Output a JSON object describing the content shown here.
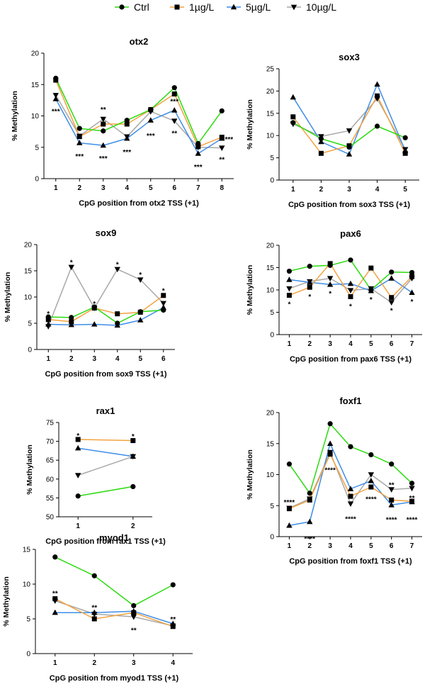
{
  "legend": {
    "entries": [
      {
        "label": "Ctrl",
        "color": "#2bdb0f",
        "marker": "circle"
      },
      {
        "label": "1µg/L",
        "color": "#f4a23f",
        "marker": "square"
      },
      {
        "label": "5µg/L",
        "color": "#3f8ee6",
        "marker": "triangle-up"
      },
      {
        "label": "10µg/L",
        "color": "#a8a8a8",
        "marker": "triangle-down"
      }
    ]
  },
  "chart_data": [
    {
      "type": "line",
      "title": "otx2",
      "xlabel": "CpG position from otx2 TSS (+1)",
      "ylabel": "% Methylation",
      "x": [
        1,
        2,
        3,
        4,
        5,
        6,
        7,
        8
      ],
      "ylim": [
        0,
        20
      ],
      "yticks": [
        0,
        5,
        10,
        15,
        20
      ],
      "series": [
        {
          "name": "Ctrl",
          "values": [
            16.0,
            8.0,
            7.6,
            9.3,
            11.0,
            14.5,
            5.6,
            10.8
          ]
        },
        {
          "name": "1µg/L",
          "values": [
            15.7,
            6.7,
            8.7,
            8.7,
            11.0,
            13.5,
            5.1,
            6.6
          ]
        },
        {
          "name": "5µg/L",
          "values": [
            12.7,
            5.7,
            5.3,
            6.4,
            9.3,
            10.9,
            4.0,
            6.4
          ]
        },
        {
          "name": "10µg/L",
          "values": [
            13.3,
            6.8,
            9.5,
            6.7,
            10.7,
            9.2,
            5.0,
            4.9
          ]
        }
      ],
      "annotations": [
        {
          "x": 1,
          "y": 10.8,
          "text": "***"
        },
        {
          "x": 2,
          "y": 3.6,
          "text": "***"
        },
        {
          "x": 3,
          "y": 11.1,
          "text": "**"
        },
        {
          "x": 3,
          "y": 3.3,
          "text": "***"
        },
        {
          "x": 4,
          "y": 4.3,
          "text": "***"
        },
        {
          "x": 5,
          "y": 6.9,
          "text": "***"
        },
        {
          "x": 6,
          "y": 12.4,
          "text": "***"
        },
        {
          "x": 6,
          "y": 7.3,
          "text": "**"
        },
        {
          "x": 7,
          "y": 1.9,
          "text": "***"
        },
        {
          "x": 8,
          "y": 3.1,
          "text": "**"
        },
        {
          "x": 8.3,
          "y": 6.3,
          "text": "***"
        }
      ]
    },
    {
      "type": "line",
      "title": "sox3",
      "xlabel": "CpG position from sox3 TSS (+1)",
      "ylabel": "% Methylation",
      "x": [
        1,
        2,
        3,
        4,
        5
      ],
      "ylim": [
        0,
        25
      ],
      "yticks": [
        0,
        5,
        10,
        15,
        20,
        25
      ],
      "series": [
        {
          "name": "Ctrl",
          "values": [
            12.9,
            9.3,
            7.4,
            12.1,
            9.5
          ]
        },
        {
          "name": "1µg/L",
          "values": [
            14.2,
            6.0,
            7.7,
            18.9,
            6.0
          ]
        },
        {
          "name": "5µg/L",
          "values": [
            18.6,
            8.6,
            5.8,
            21.5,
            6.6
          ]
        },
        {
          "name": "10µg/L",
          "values": [
            12.6,
            9.8,
            11.1,
            18.3,
            6.9
          ]
        }
      ],
      "annotations": []
    },
    {
      "type": "line",
      "title": "sox9",
      "xlabel": "CpG position from sox9 TSS (+1)",
      "ylabel": "% Methylation",
      "x": [
        1,
        2,
        3,
        4,
        5,
        6
      ],
      "ylim": [
        0,
        20
      ],
      "yticks": [
        0,
        5,
        10,
        15,
        20
      ],
      "series": [
        {
          "name": "Ctrl",
          "values": [
            6.2,
            6.1,
            8.1,
            5.0,
            7.2,
            7.5
          ]
        },
        {
          "name": "1µg/L",
          "values": [
            5.7,
            5.3,
            7.9,
            6.8,
            7.1,
            10.3
          ]
        },
        {
          "name": "5µg/L",
          "values": [
            4.8,
            4.7,
            4.8,
            4.6,
            5.6,
            8.0
          ]
        },
        {
          "name": "10µg/L",
          "values": [
            4.4,
            15.7,
            7.9,
            15.3,
            13.3,
            8.8
          ]
        }
      ],
      "annotations": [
        {
          "x": 1,
          "y": 6.9,
          "text": "*"
        },
        {
          "x": 2,
          "y": 16.7,
          "text": "*"
        },
        {
          "x": 3,
          "y": 8.8,
          "text": "*"
        },
        {
          "x": 4,
          "y": 16.3,
          "text": "*"
        },
        {
          "x": 5,
          "y": 14.3,
          "text": "*"
        },
        {
          "x": 6,
          "y": 11.3,
          "text": "*"
        }
      ]
    },
    {
      "type": "line",
      "title": "pax6",
      "xlabel": "CpG position from pax6 TSS (+1)",
      "ylabel": "% Methylation",
      "x": [
        1,
        2,
        3,
        4,
        5,
        6,
        7
      ],
      "ylim": [
        0,
        20
      ],
      "yticks": [
        0,
        5,
        10,
        15,
        20
      ],
      "series": [
        {
          "name": "Ctrl",
          "values": [
            14.2,
            15.3,
            15.5,
            16.7,
            10.0,
            14.0,
            13.9
          ]
        },
        {
          "name": "1µg/L",
          "values": [
            8.8,
            10.6,
            15.9,
            8.5,
            14.9,
            8.3,
            13.0
          ]
        },
        {
          "name": "5µg/L",
          "values": [
            12.3,
            11.7,
            11.2,
            11.4,
            9.8,
            12.6,
            9.4
          ]
        },
        {
          "name": "10µg/L",
          "values": [
            10.3,
            11.9,
            12.6,
            9.9,
            10.3,
            7.2,
            12.6
          ]
        }
      ],
      "annotations": [
        {
          "x": 1,
          "y": 6.9,
          "text": "*"
        },
        {
          "x": 2,
          "y": 8.6,
          "text": "*"
        },
        {
          "x": 3,
          "y": 9.3,
          "text": "*"
        },
        {
          "x": 4,
          "y": 6.4,
          "text": "*"
        },
        {
          "x": 5,
          "y": 7.9,
          "text": "*"
        },
        {
          "x": 6,
          "y": 5.5,
          "text": "*"
        },
        {
          "x": 7,
          "y": 7.5,
          "text": "*"
        }
      ]
    },
    {
      "type": "line",
      "title": "rax1",
      "xlabel": "CpG position from rax1 TSS (+1)",
      "ylabel": "% Methylation",
      "x": [
        1,
        2
      ],
      "ylim": [
        50,
        75
      ],
      "yticks": [
        50,
        55,
        60,
        65,
        70,
        75
      ],
      "series": [
        {
          "name": "Ctrl",
          "values": [
            55.5,
            58.0
          ]
        },
        {
          "name": "1µg/L",
          "values": [
            70.5,
            70.2
          ]
        },
        {
          "name": "5µg/L",
          "values": [
            68.2,
            66.0
          ]
        },
        {
          "name": "10µg/L",
          "values": [
            61.0,
            66.0
          ]
        }
      ],
      "annotations": [
        {
          "x": 1,
          "y": 71.6,
          "text": "*"
        },
        {
          "x": 2,
          "y": 71.4,
          "text": "*"
        }
      ]
    },
    {
      "type": "line",
      "title": "foxf1",
      "xlabel": "CpG position from foxf1 TSS (+1)",
      "ylabel": "% Methylation",
      "x": [
        1,
        2,
        3,
        4,
        5,
        6,
        7
      ],
      "ylim": [
        0,
        20
      ],
      "yticks": [
        0,
        5,
        10,
        15,
        20
      ],
      "series": [
        {
          "name": "Ctrl",
          "values": [
            11.7,
            7.0,
            18.2,
            14.5,
            13.2,
            11.7,
            8.6
          ]
        },
        {
          "name": "1µg/L",
          "values": [
            4.5,
            5.9,
            13.3,
            6.5,
            8.0,
            5.9,
            5.7
          ]
        },
        {
          "name": "5µg/L",
          "values": [
            1.8,
            2.4,
            15.0,
            7.7,
            9.0,
            5.1,
            5.6
          ]
        },
        {
          "name": "10µg/L",
          "values": [
            4.6,
            6.1,
            13.6,
            5.3,
            10.0,
            7.6,
            7.8
          ]
        }
      ],
      "annotations": [
        {
          "x": 1,
          "y": 5.6,
          "text": "****"
        },
        {
          "x": 2,
          "y": -0.3,
          "text": "****"
        },
        {
          "x": 3,
          "y": 10.8,
          "text": "****"
        },
        {
          "x": 4,
          "y": 2.9,
          "text": "****"
        },
        {
          "x": 5,
          "y": 6.1,
          "text": "****"
        },
        {
          "x": 6,
          "y": 8.4,
          "text": "**"
        },
        {
          "x": 6,
          "y": 2.8,
          "text": "****"
        },
        {
          "x": 7,
          "y": 6.3,
          "text": "**"
        },
        {
          "x": 7,
          "y": 2.8,
          "text": "****"
        }
      ]
    },
    {
      "type": "line",
      "title": "myod1",
      "xlabel": "CpG position from myod1 TSS (+1)",
      "ylabel": "% Methylation",
      "x": [
        1,
        2,
        3,
        4
      ],
      "ylim": [
        0,
        15
      ],
      "yticks": [
        0,
        5,
        10,
        15
      ],
      "series": [
        {
          "name": "Ctrl",
          "values": [
            13.9,
            11.2,
            6.9,
            9.9
          ]
        },
        {
          "name": "1µg/L",
          "values": [
            7.9,
            5.0,
            5.9,
            3.9
          ]
        },
        {
          "name": "5µg/L",
          "values": [
            5.9,
            5.9,
            6.1,
            4.3
          ]
        },
        {
          "name": "10µg/L",
          "values": [
            7.6,
            5.7,
            5.3,
            4.0
          ]
        }
      ],
      "annotations": [
        {
          "x": 1,
          "y": 8.7,
          "text": "**"
        },
        {
          "x": 2,
          "y": 6.7,
          "text": "**"
        },
        {
          "x": 3,
          "y": 3.4,
          "text": "**"
        },
        {
          "x": 4,
          "y": 5.0,
          "text": "**"
        }
      ]
    }
  ]
}
